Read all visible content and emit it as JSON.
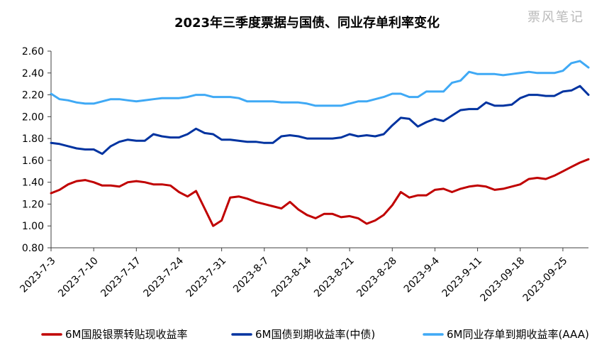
{
  "watermark": "票风笔记",
  "chart_data": {
    "type": "line",
    "title": "2023年三季度票据与国债、同业存单利率变化",
    "xlabel": "",
    "ylabel": "",
    "ylim": [
      0.8,
      2.6
    ],
    "yticks": [
      "0.80",
      "1.00",
      "1.20",
      "1.40",
      "1.60",
      "1.80",
      "2.00",
      "2.20",
      "2.40",
      "2.60"
    ],
    "xtick_labels": [
      "2023-7-3",
      "2023-7-10",
      "2023-7-17",
      "2023-7-24",
      "2023-7-31",
      "2023-8-7",
      "2023-8-14",
      "2023-8-21",
      "2023-8-28",
      "2023-9-4",
      "2023-9-11",
      "2023-09-18",
      "2023-09-25"
    ],
    "legend_position": "bottom",
    "grid": false,
    "series": [
      {
        "name": "6M国股银票转贴现收益率",
        "color": "#C00000",
        "values": [
          1.3,
          1.33,
          1.38,
          1.41,
          1.42,
          1.4,
          1.37,
          1.37,
          1.36,
          1.4,
          1.41,
          1.4,
          1.38,
          1.38,
          1.37,
          1.31,
          1.27,
          1.32,
          1.16,
          1.0,
          1.05,
          1.26,
          1.27,
          1.25,
          1.22,
          1.2,
          1.18,
          1.16,
          1.22,
          1.15,
          1.1,
          1.07,
          1.11,
          1.11,
          1.08,
          1.09,
          1.07,
          1.02,
          1.05,
          1.1,
          1.19,
          1.31,
          1.26,
          1.28,
          1.28,
          1.33,
          1.34,
          1.31,
          1.34,
          1.36,
          1.37,
          1.36,
          1.33,
          1.34,
          1.36,
          1.38,
          1.43,
          1.44,
          1.43,
          1.46,
          1.5,
          1.54,
          1.58,
          1.61
        ]
      },
      {
        "name": "6M国债到期收益率(中债)",
        "color": "#0033A0",
        "values": [
          1.76,
          1.75,
          1.73,
          1.71,
          1.7,
          1.7,
          1.66,
          1.73,
          1.77,
          1.79,
          1.78,
          1.78,
          1.84,
          1.82,
          1.81,
          1.81,
          1.84,
          1.89,
          1.85,
          1.84,
          1.79,
          1.79,
          1.78,
          1.77,
          1.77,
          1.76,
          1.76,
          1.82,
          1.83,
          1.82,
          1.8,
          1.8,
          1.8,
          1.8,
          1.81,
          1.84,
          1.82,
          1.83,
          1.82,
          1.84,
          1.92,
          1.99,
          1.98,
          1.91,
          1.95,
          1.98,
          1.96,
          2.01,
          2.06,
          2.07,
          2.07,
          2.13,
          2.1,
          2.1,
          2.11,
          2.17,
          2.2,
          2.2,
          2.19,
          2.19,
          2.23,
          2.24,
          2.28,
          2.2
        ]
      },
      {
        "name": "6M同业存单到期收益率(AAA)",
        "color": "#3FA9F5",
        "values": [
          2.21,
          2.16,
          2.15,
          2.13,
          2.12,
          2.12,
          2.14,
          2.16,
          2.16,
          2.15,
          2.14,
          2.15,
          2.16,
          2.17,
          2.17,
          2.17,
          2.18,
          2.2,
          2.2,
          2.18,
          2.18,
          2.18,
          2.17,
          2.14,
          2.14,
          2.14,
          2.14,
          2.13,
          2.13,
          2.13,
          2.12,
          2.1,
          2.1,
          2.1,
          2.1,
          2.12,
          2.14,
          2.14,
          2.16,
          2.18,
          2.21,
          2.21,
          2.18,
          2.18,
          2.23,
          2.23,
          2.23,
          2.31,
          2.33,
          2.41,
          2.39,
          2.39,
          2.39,
          2.38,
          2.39,
          2.4,
          2.41,
          2.4,
          2.4,
          2.4,
          2.42,
          2.49,
          2.51,
          2.45
        ]
      }
    ]
  }
}
